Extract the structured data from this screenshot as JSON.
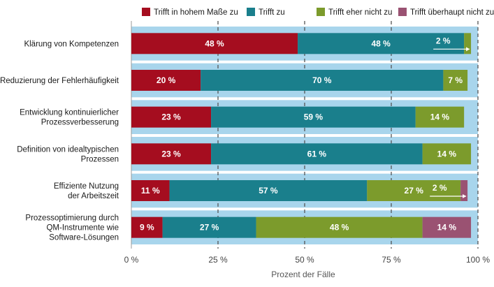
{
  "chart_data": {
    "type": "bar",
    "orientation": "horizontal",
    "stacked": true,
    "categories": [
      [
        "Klärung von Kompetenzen"
      ],
      [
        "Reduzierung der Fehlerhäufigkeit"
      ],
      [
        "Entwicklung kontinuierlicher",
        "Prozessverbesserung"
      ],
      [
        "Definition von idealtypischen",
        "Prozessen"
      ],
      [
        "Effiziente Nutzung",
        "der Arbeitszeit"
      ],
      [
        "Prozessoptimierung durch",
        "QM-Instrumente wie",
        "Software-Lösungen"
      ]
    ],
    "series": [
      {
        "name": "Trifft in hohem Maße zu",
        "color": "#a50d1f",
        "values": [
          48,
          20,
          23,
          23,
          11,
          9
        ],
        "labels": [
          "48 %",
          "20 %",
          "23 %",
          "23 %",
          "11 %",
          "9 %"
        ]
      },
      {
        "name": "Trifft zu",
        "color": "#1a7f8c",
        "values": [
          48,
          70,
          59,
          61,
          57,
          27
        ],
        "labels": [
          "48 %",
          "70 %",
          "59 %",
          "61 %",
          "57 %",
          "27 %"
        ]
      },
      {
        "name": "Trifft eher nicht zu",
        "color": "#7c9b2c",
        "values": [
          2,
          7,
          14,
          14,
          27,
          48
        ],
        "labels": [
          "2 %",
          "7 %",
          "14 %",
          "14 %",
          "27 %",
          "48 %"
        ]
      },
      {
        "name": "Trifft überhaupt nicht zu",
        "color": "#9a5272",
        "values": [
          0,
          0,
          0,
          0,
          2,
          14
        ],
        "labels": [
          "",
          "",
          "",
          "",
          "2 %",
          "14 %"
        ]
      }
    ],
    "xlim": [
      0,
      100
    ],
    "xticks": [
      0,
      25,
      50,
      75,
      100
    ],
    "xtick_labels": [
      "0 %",
      "25 %",
      "50 %",
      "75 %",
      "100 %"
    ],
    "xlabel": "Prozent der Fälle",
    "legend_position": "top",
    "background_band_color": "#a8d5ec",
    "gridlines": "dashed vertical"
  }
}
